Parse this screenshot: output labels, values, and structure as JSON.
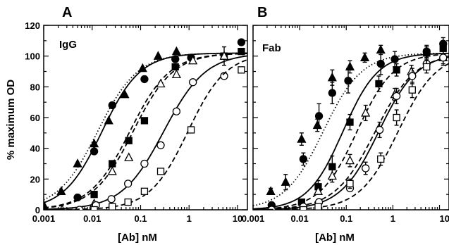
{
  "figure": {
    "ylabel": "% maximum OD"
  },
  "chart_data": [
    {
      "type": "scatter",
      "panel": "A",
      "label": "IgG",
      "xlabel": "[Ab] nM",
      "ylabel": "% maximum OD",
      "xscale": "log",
      "xlim": [
        0.001,
        16
      ],
      "ylim": [
        0,
        120
      ],
      "xticks": [
        "0.001",
        "0.01",
        "0.1",
        "1",
        "10"
      ],
      "yticks": [
        "0",
        "20",
        "40",
        "60",
        "80",
        "100",
        "120"
      ],
      "series": [
        {
          "marker": "filled-triangle",
          "line": "dotted",
          "ec50": 0.013,
          "hill": 1.05,
          "x": [
            0.001,
            0.0023,
            0.005,
            0.011,
            0.022,
            0.047,
            0.11,
            0.23,
            0.55
          ],
          "y": [
            3,
            12,
            30,
            43,
            58,
            75,
            92,
            100,
            103
          ],
          "err": []
        },
        {
          "marker": "filled-circle",
          "line": "solid",
          "ec50": 0.016,
          "hill": 1.1,
          "x": [
            0.005,
            0.011,
            0.026,
            0.12,
            0.52,
            1.1,
            12
          ],
          "y": [
            8,
            38,
            68,
            85,
            98,
            99,
            109
          ],
          "err": []
        },
        {
          "marker": "filled-square",
          "line": "dashed",
          "ec50": 0.06,
          "hill": 1.05,
          "x": [
            0.011,
            0.026,
            0.057,
            0.12,
            0.52,
            5.3,
            12
          ],
          "y": [
            10,
            30,
            45,
            58,
            93,
            100,
            103
          ],
          "err": [
            0,
            0,
            0,
            0,
            0,
            6,
            0
          ]
        },
        {
          "marker": "open-triangle",
          "line": "dashed",
          "ec50": 0.07,
          "hill": 1.05,
          "x": [
            0.0024,
            0.011,
            0.026,
            0.057,
            0.26,
            0.55,
            1.2,
            5.3
          ],
          "y": [
            0,
            4,
            25,
            34,
            82,
            88,
            97,
            100
          ],
          "err": []
        },
        {
          "marker": "open-circle",
          "line": "solid",
          "ec50": 0.3,
          "hill": 1.0,
          "x": [
            0.0055,
            0.012,
            0.025,
            0.055,
            0.12,
            0.26,
            0.55,
            1.2,
            5.3
          ],
          "y": [
            0,
            3,
            7,
            17,
            30,
            42,
            64,
            83,
            87
          ],
          "err": []
        },
        {
          "marker": "open-square",
          "line": "dashed",
          "ec50": 0.95,
          "hill": 1.1,
          "x": [
            0.011,
            0.026,
            0.055,
            0.12,
            0.26,
            1.1,
            12
          ],
          "y": [
            0,
            2,
            5,
            12,
            25,
            52,
            91
          ],
          "err": []
        }
      ]
    },
    {
      "type": "scatter",
      "panel": "B",
      "label": "Fab",
      "xlabel": "[Ab] nM",
      "ylabel": "",
      "xscale": "log",
      "xlim": [
        0.001,
        16
      ],
      "ylim": [
        0,
        120
      ],
      "xticks": [
        "0.001",
        "0.01",
        "0.1",
        "1",
        "10"
      ],
      "yticks": [],
      "series": [
        {
          "marker": "filled-triangle",
          "line": "dotted",
          "ec50": 0.032,
          "hill": 1.05,
          "x": [
            0.0024,
            0.005,
            0.011,
            0.024,
            0.05,
            0.12,
            0.25,
            0.55
          ],
          "y": [
            12,
            18,
            46,
            55,
            86,
            93,
            99,
            104
          ],
          "err": [
            2,
            5,
            4,
            4,
            5,
            4,
            3,
            3
          ]
        },
        {
          "marker": "filled-circle",
          "line": "solid",
          "ec50": 0.085,
          "hill": 1.15,
          "x": [
            0.0025,
            0.012,
            0.026,
            0.05,
            0.11,
            0.55,
            1.1,
            5.3,
            12
          ],
          "y": [
            3,
            33,
            61,
            76,
            84,
            95,
            98,
            103,
            108
          ],
          "err": [
            0,
            4,
            8,
            7,
            8,
            7,
            5,
            4,
            4
          ]
        },
        {
          "marker": "filled-square",
          "line": "dashed",
          "ec50": 0.17,
          "hill": 1.1,
          "x": [
            0.0025,
            0.011,
            0.025,
            0.05,
            0.12,
            0.5,
            1.2,
            5.3,
            12
          ],
          "y": [
            0,
            5,
            15,
            28,
            57,
            82,
            91,
            102,
            105
          ],
          "err": [
            0,
            0,
            4,
            7,
            5,
            5,
            4,
            4,
            4
          ]
        },
        {
          "marker": "open-triangle",
          "line": "dashed",
          "ec50": 0.42,
          "hill": 1.0,
          "x": [
            0.0055,
            0.025,
            0.05,
            0.12,
            0.26,
            1.1,
            2.5,
            12
          ],
          "y": [
            0,
            12,
            22,
            32,
            63,
            75,
            90,
            99
          ],
          "err": [
            0,
            0,
            4,
            4,
            5,
            4,
            4,
            4
          ]
        },
        {
          "marker": "open-circle",
          "line": "solid",
          "ec50": 0.5,
          "hill": 1.05,
          "x": [
            0.0025,
            0.012,
            0.026,
            0.12,
            0.26,
            0.52,
            1.2,
            2.6,
            5.3,
            12
          ],
          "y": [
            0,
            2,
            5,
            14,
            27,
            52,
            74,
            87,
            95,
            99
          ],
          "err": [
            0,
            0,
            0,
            0,
            4,
            5,
            5,
            5,
            4,
            5
          ]
        },
        {
          "marker": "open-square",
          "line": "dashed",
          "ec50": 1.3,
          "hill": 1.05,
          "x": [
            0.012,
            0.025,
            0.12,
            0.55,
            1.2,
            2.6,
            5.3
          ],
          "y": [
            0,
            2,
            17,
            33,
            60,
            78,
            93
          ],
          "err": [
            0,
            0,
            3,
            4,
            5,
            5,
            4
          ]
        }
      ]
    }
  ]
}
